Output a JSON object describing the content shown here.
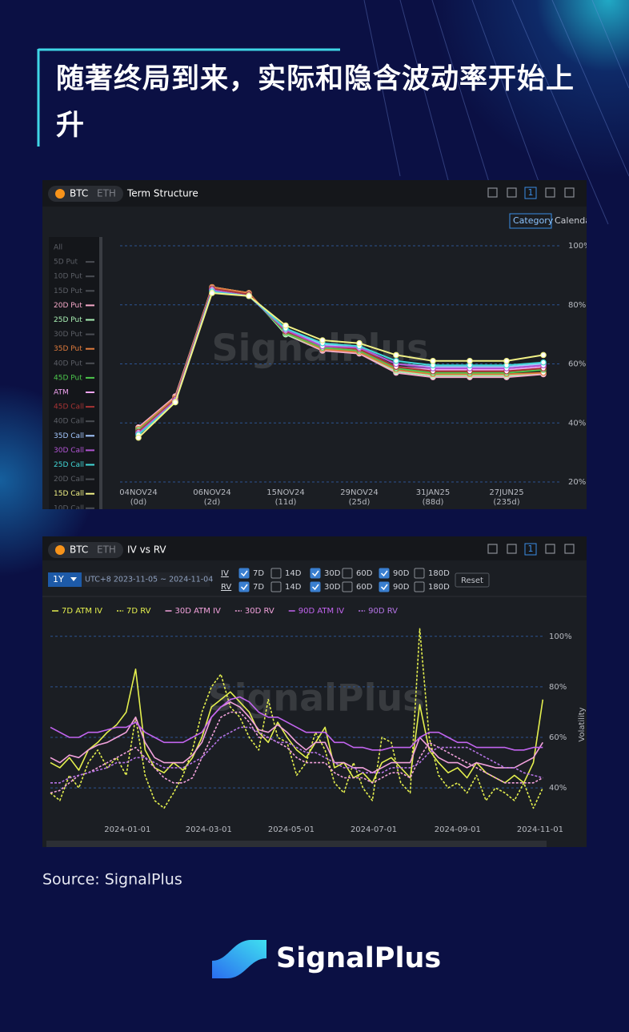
{
  "header": {
    "title": "随著终局到来，实际和隐含波动率开始上升"
  },
  "footer": {
    "source": "Source: SignalPlus",
    "brand": "SignalPlus"
  },
  "chart_data": [
    {
      "type": "line",
      "toolbar": {
        "assets": [
          "BTC",
          "ETH"
        ],
        "view": "Term Structure",
        "badge": "1",
        "modes": [
          "Category",
          "Calendar"
        ]
      },
      "watermark": "SignalPlus",
      "markers": true,
      "grid": true,
      "categories": [
        "04NOV24",
        null,
        "06NOV24",
        null,
        "15NOV24",
        null,
        "29NOV24",
        null,
        "31JAN25",
        null,
        "27JUN25",
        null
      ],
      "category_days": [
        "(0d)",
        null,
        "(2d)",
        null,
        "(11d)",
        null,
        "(25d)",
        null,
        "(88d)",
        null,
        "(235d)",
        null
      ],
      "ylim": [
        20,
        100
      ],
      "yticks": [
        {
          "value": 20,
          "label": "20%"
        },
        {
          "value": 40,
          "label": "40%"
        },
        {
          "value": 60,
          "label": "60%"
        },
        {
          "value": 80,
          "label": "80%"
        },
        {
          "value": 100,
          "label": "100%"
        }
      ],
      "series": [
        {
          "name": "All",
          "active": false
        },
        {
          "name": "5D Put",
          "active": false
        },
        {
          "name": "10D Put",
          "active": false
        },
        {
          "name": "15D Put",
          "active": false
        },
        {
          "name": "20D Put",
          "active": true,
          "color": "#f6a9c9",
          "values": [
            38.5,
            49,
            86,
            84,
            70,
            64.5,
            63.5,
            57,
            55.5,
            55.5,
            55.5,
            56.5
          ]
        },
        {
          "name": "25D Put",
          "active": true,
          "color": "#a9f0b4",
          "values": [
            38,
            48.5,
            86,
            84,
            70,
            65,
            64,
            57.5,
            56,
            56,
            56,
            57
          ]
        },
        {
          "name": "30D Put",
          "active": false
        },
        {
          "name": "35D Put",
          "active": true,
          "color": "#e07b3c",
          "values": [
            38,
            48.5,
            86,
            84,
            70.5,
            65,
            64,
            58,
            56.5,
            56.5,
            56.5,
            57
          ]
        },
        {
          "name": "40D Put",
          "active": false
        },
        {
          "name": "45D Put",
          "active": true,
          "color": "#4cc64c",
          "values": [
            37.5,
            48,
            85.5,
            83.5,
            70.5,
            65.5,
            64.5,
            58.5,
            57,
            57,
            57,
            58
          ]
        },
        {
          "name": "ATM",
          "active": true,
          "color": "#f2a4f2",
          "values": [
            37,
            48,
            85.5,
            83.5,
            71,
            66,
            65,
            59,
            58,
            58,
            58,
            59
          ]
        },
        {
          "name": "45D Call",
          "active": true,
          "color": "#a83434",
          "values": [
            37,
            48,
            85.5,
            83.5,
            71,
            66,
            65,
            59,
            57.5,
            57.5,
            57.5,
            58.5
          ]
        },
        {
          "name": "40D Call",
          "active": false
        },
        {
          "name": "35D Call",
          "active": true,
          "color": "#a4c8ff",
          "values": [
            36.5,
            47.5,
            85,
            83,
            71.5,
            66.5,
            65.5,
            60,
            59,
            59,
            59,
            60
          ]
        },
        {
          "name": "30D Call",
          "active": true,
          "color": "#b255d4",
          "values": [
            36.5,
            47.5,
            85,
            83,
            71.5,
            66,
            65.5,
            60,
            58.5,
            58.5,
            58.5,
            59.5
          ]
        },
        {
          "name": "25D Call",
          "active": true,
          "color": "#42d8d8",
          "values": [
            36,
            47,
            84.5,
            83,
            72,
            67,
            66,
            61,
            59.5,
            59.5,
            59.5,
            60.5
          ]
        },
        {
          "name": "20D Call",
          "active": false
        },
        {
          "name": "15D Call",
          "active": true,
          "color": "#f2f286",
          "values": [
            35,
            47,
            84,
            83,
            73,
            68,
            67,
            63,
            61,
            61,
            61,
            63
          ]
        },
        {
          "name": "10D Call",
          "active": false
        }
      ]
    },
    {
      "type": "line",
      "toolbar": {
        "assets": [
          "BTC",
          "ETH"
        ],
        "view": "IV vs RV",
        "badge": "1"
      },
      "watermark": "SignalPlus",
      "grid": true,
      "y_label": "Volatility",
      "controls": {
        "range": "1Y",
        "period": "UTC+8 2023-11-05 ~ 2024-11-04",
        "reset": "Reset",
        "rows": [
          {
            "name": "IV",
            "options": [
              {
                "label": "7D",
                "checked": true
              },
              {
                "label": "14D",
                "checked": false
              },
              {
                "label": "30D",
                "checked": true
              },
              {
                "label": "60D",
                "checked": false
              },
              {
                "label": "90D",
                "checked": true
              },
              {
                "label": "180D",
                "checked": false
              }
            ]
          },
          {
            "name": "RV",
            "options": [
              {
                "label": "7D",
                "checked": true
              },
              {
                "label": "14D",
                "checked": false
              },
              {
                "label": "30D",
                "checked": true
              },
              {
                "label": "60D",
                "checked": false
              },
              {
                "label": "90D",
                "checked": true
              },
              {
                "label": "180D",
                "checked": false
              }
            ]
          }
        ]
      },
      "xlim": [
        "2023-11-05",
        "2024-11-04"
      ],
      "xticks": [
        "2024-01-01",
        "2024-03-01",
        "2024-05-01",
        "2024-07-01",
        "2024-09-01",
        "2024-11-01"
      ],
      "ylim": [
        28,
        105
      ],
      "yticks": [
        {
          "value": 40,
          "label": "40%"
        },
        {
          "value": 60,
          "label": "60%"
        },
        {
          "value": 80,
          "label": "80%"
        },
        {
          "value": 100,
          "label": "100%"
        }
      ],
      "x": [
        "2023-11-05",
        "2023-11-12",
        "2023-11-19",
        "2023-11-26",
        "2023-12-03",
        "2023-12-10",
        "2023-12-17",
        "2023-12-24",
        "2023-12-31",
        "2024-01-07",
        "2024-01-14",
        "2024-01-21",
        "2024-01-28",
        "2024-02-04",
        "2024-02-11",
        "2024-02-18",
        "2024-02-25",
        "2024-03-03",
        "2024-03-10",
        "2024-03-17",
        "2024-03-24",
        "2024-03-31",
        "2024-04-07",
        "2024-04-14",
        "2024-04-21",
        "2024-04-28",
        "2024-05-05",
        "2024-05-12",
        "2024-05-19",
        "2024-05-26",
        "2024-06-02",
        "2024-06-09",
        "2024-06-16",
        "2024-06-23",
        "2024-06-30",
        "2024-07-07",
        "2024-07-14",
        "2024-07-21",
        "2024-07-28",
        "2024-08-04",
        "2024-08-11",
        "2024-08-18",
        "2024-08-25",
        "2024-09-01",
        "2024-09-08",
        "2024-09-15",
        "2024-09-22",
        "2024-09-29",
        "2024-10-06",
        "2024-10-13",
        "2024-10-20",
        "2024-10-27",
        "2024-11-03"
      ],
      "series": [
        {
          "name": "7D ATM IV",
          "color": "#e4ef4e",
          "dashed": false,
          "values": [
            50,
            48,
            52,
            47,
            55,
            58,
            62,
            65,
            70,
            87,
            55,
            48,
            46,
            50,
            47,
            52,
            60,
            72,
            75,
            78,
            74,
            70,
            62,
            58,
            66,
            60,
            55,
            52,
            58,
            64,
            48,
            50,
            44,
            46,
            42,
            50,
            52,
            48,
            44,
            73,
            55,
            50,
            46,
            48,
            44,
            50,
            46,
            44,
            42,
            45,
            42,
            50,
            75
          ]
        },
        {
          "name": "7D RV",
          "color": "#e4ef4e",
          "dashed": true,
          "values": [
            38,
            35,
            45,
            40,
            50,
            55,
            48,
            52,
            45,
            68,
            45,
            35,
            32,
            38,
            45,
            55,
            70,
            80,
            85,
            72,
            68,
            60,
            55,
            75,
            60,
            58,
            45,
            50,
            62,
            55,
            42,
            38,
            50,
            40,
            35,
            60,
            58,
            42,
            38,
            103,
            60,
            45,
            40,
            42,
            38,
            45,
            35,
            40,
            38,
            35,
            42,
            32,
            40
          ]
        },
        {
          "name": "30D ATM IV",
          "color": "#f2a2dc",
          "dashed": false,
          "values": [
            52,
            50,
            53,
            52,
            55,
            57,
            58,
            60,
            62,
            68,
            58,
            52,
            50,
            50,
            50,
            53,
            58,
            68,
            72,
            74,
            72,
            68,
            63,
            62,
            65,
            62,
            58,
            55,
            58,
            58,
            50,
            50,
            48,
            48,
            46,
            48,
            50,
            50,
            50,
            60,
            56,
            52,
            50,
            50,
            48,
            50,
            49,
            48,
            48,
            48,
            50,
            52,
            58
          ]
        },
        {
          "name": "30D RV",
          "color": "#f2a2dc",
          "dashed": true,
          "values": [
            38,
            39,
            42,
            45,
            46,
            48,
            50,
            52,
            54,
            56,
            52,
            48,
            44,
            42,
            42,
            44,
            52,
            60,
            68,
            70,
            70,
            66,
            60,
            60,
            58,
            56,
            52,
            50,
            50,
            50,
            46,
            44,
            44,
            44,
            42,
            44,
            46,
            46,
            44,
            52,
            58,
            56,
            54,
            52,
            50,
            48,
            46,
            44,
            42,
            42,
            42,
            42,
            44
          ]
        },
        {
          "name": "90D ATM IV",
          "color": "#c264ef",
          "dashed": false,
          "values": [
            64,
            62,
            60,
            60,
            62,
            62,
            63,
            64,
            64,
            66,
            62,
            60,
            58,
            58,
            58,
            60,
            62,
            68,
            72,
            75,
            76,
            74,
            70,
            68,
            68,
            66,
            64,
            62,
            62,
            62,
            58,
            58,
            56,
            56,
            55,
            55,
            56,
            56,
            56,
            60,
            62,
            62,
            60,
            58,
            58,
            56,
            56,
            56,
            56,
            55,
            55,
            56,
            56
          ]
        },
        {
          "name": "90D RV",
          "color": "#b574e6",
          "dashed": true,
          "values": [
            42,
            42,
            44,
            45,
            46,
            47,
            48,
            50,
            50,
            52,
            52,
            50,
            48,
            48,
            48,
            50,
            52,
            56,
            60,
            62,
            64,
            64,
            62,
            60,
            58,
            58,
            56,
            54,
            54,
            52,
            50,
            48,
            48,
            46,
            46,
            46,
            48,
            48,
            48,
            50,
            54,
            56,
            56,
            56,
            56,
            54,
            52,
            50,
            48,
            48,
            46,
            45,
            44
          ]
        }
      ]
    }
  ]
}
